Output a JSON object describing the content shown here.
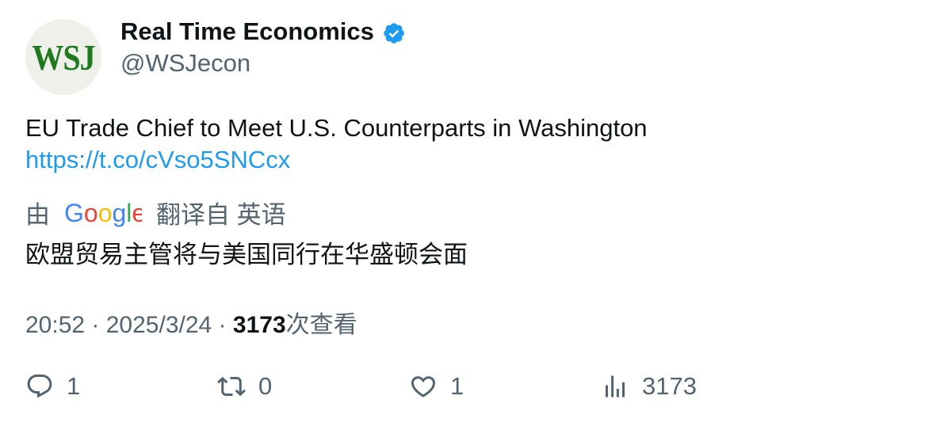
{
  "author": {
    "avatar_text": "WSJ",
    "display_name": "Real Time Economics",
    "handle": "@WSJecon",
    "verified": true
  },
  "tweet": {
    "text": "EU Trade Chief to Meet U.S. Counterparts in Washington",
    "link": "https://t.co/cVso5SNCcx"
  },
  "translation": {
    "prefix": "由",
    "provider": "Google",
    "suffix": "翻译自 英语",
    "text": "欧盟贸易主管将与美国同行在华盛顿会面"
  },
  "meta": {
    "time": "20:52",
    "separator1": " · ",
    "date": "2025/3/24",
    "separator2": " · ",
    "views": "3173",
    "views_label": "次查看"
  },
  "actions": {
    "replies": "1",
    "retweets": "0",
    "likes": "1",
    "views": "3173"
  },
  "colors": {
    "link": "#1d9bf0",
    "secondary_text": "#536471",
    "verified": "#1d9bf0",
    "avatar_green": "#1f7a1f"
  }
}
